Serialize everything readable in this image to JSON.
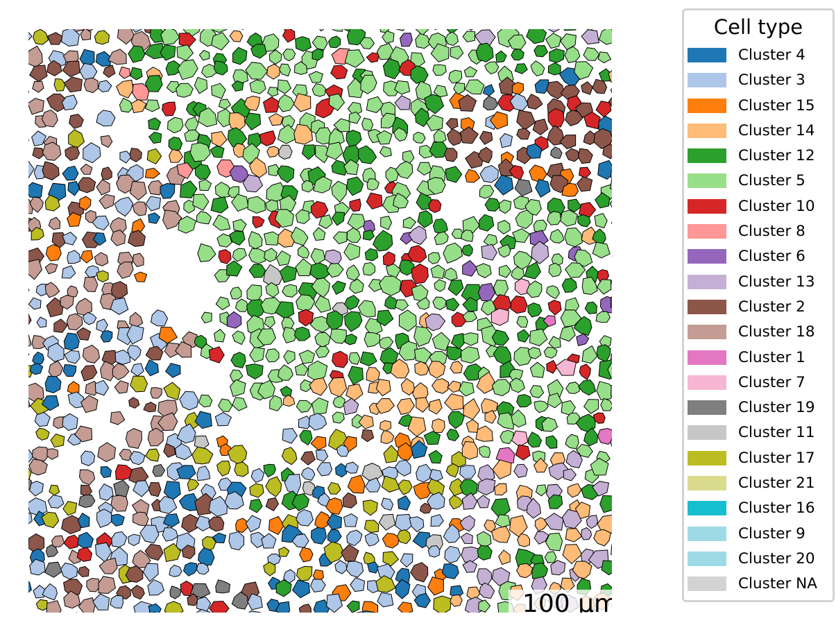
{
  "scalebar": {
    "label": "100 µm"
  },
  "legend": {
    "title": "Cell type",
    "items": [
      {
        "label": "Cluster 4",
        "color": "#1f77b4"
      },
      {
        "label": "Cluster 3",
        "color": "#aec7e8"
      },
      {
        "label": "Cluster 15",
        "color": "#ff7f0e"
      },
      {
        "label": "Cluster 14",
        "color": "#ffbb78"
      },
      {
        "label": "Cluster 12",
        "color": "#2ca02c"
      },
      {
        "label": "Cluster 5",
        "color": "#98df8a"
      },
      {
        "label": "Cluster 10",
        "color": "#d62728"
      },
      {
        "label": "Cluster 8",
        "color": "#ff9896"
      },
      {
        "label": "Cluster 6",
        "color": "#9467bd"
      },
      {
        "label": "Cluster 13",
        "color": "#c5b0d5"
      },
      {
        "label": "Cluster 2",
        "color": "#8c564b"
      },
      {
        "label": "Cluster 18",
        "color": "#c49c94"
      },
      {
        "label": "Cluster 1",
        "color": "#e377c2"
      },
      {
        "label": "Cluster 7",
        "color": "#f7b6d2"
      },
      {
        "label": "Cluster 19",
        "color": "#7f7f7f"
      },
      {
        "label": "Cluster 11",
        "color": "#c7c7c7"
      },
      {
        "label": "Cluster 17",
        "color": "#bcbd22"
      },
      {
        "label": "Cluster 21",
        "color": "#dbdb8d"
      },
      {
        "label": "Cluster 16",
        "color": "#17becf"
      },
      {
        "label": "Cluster 9",
        "color": "#9edae5"
      },
      {
        "label": "Cluster 20",
        "color": "#9edae5"
      },
      {
        "label": "Cluster NA",
        "color": "#d3d3d3"
      }
    ]
  }
}
